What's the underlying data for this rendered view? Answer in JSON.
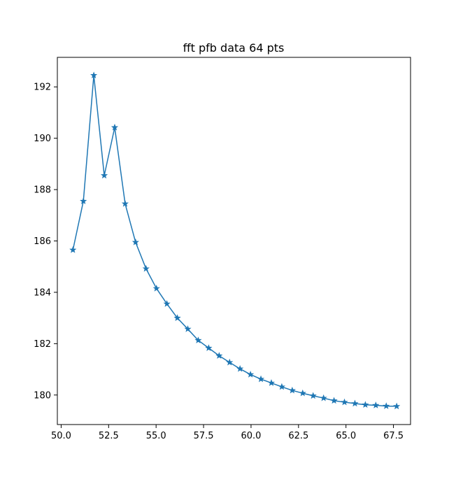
{
  "chart_data": {
    "type": "line",
    "title": "fft pfb data 64 pts",
    "xlabel": "",
    "ylabel": "",
    "xlim": [
      49.8,
      68.4
    ],
    "ylim": [
      178.85,
      193.15
    ],
    "x_ticks": [
      50.0,
      52.5,
      55.0,
      57.5,
      60.0,
      62.5,
      65.0,
      67.5
    ],
    "x_tick_labels": [
      "50.0",
      "52.5",
      "55.0",
      "57.5",
      "60.0",
      "62.5",
      "65.0",
      "67.5"
    ],
    "y_ticks": [
      180,
      182,
      184,
      186,
      188,
      190,
      192
    ],
    "y_tick_labels": [
      "180",
      "182",
      "184",
      "186",
      "188",
      "190",
      "192"
    ],
    "grid": false,
    "color": "#1f77b4",
    "marker": "star",
    "series": [
      {
        "x": [
          50.62,
          51.17,
          51.72,
          52.27,
          52.82,
          53.37,
          53.92,
          54.47,
          55.02,
          55.57,
          56.12,
          56.67,
          57.22,
          57.77,
          58.32,
          58.87,
          59.42,
          59.97,
          60.52,
          61.07,
          61.62,
          62.17,
          62.72,
          63.27,
          63.82,
          64.37,
          64.92,
          65.47,
          66.02,
          66.57,
          67.12,
          67.67
        ],
        "y": [
          185.65,
          187.55,
          192.45,
          188.55,
          190.42,
          187.45,
          185.95,
          184.92,
          184.15,
          183.55,
          183.0,
          182.57,
          182.13,
          181.83,
          181.53,
          181.27,
          181.02,
          180.8,
          180.62,
          180.47,
          180.32,
          180.18,
          180.07,
          179.97,
          179.88,
          179.78,
          179.72,
          179.67,
          179.62,
          179.6,
          179.57,
          179.56
        ]
      }
    ]
  }
}
